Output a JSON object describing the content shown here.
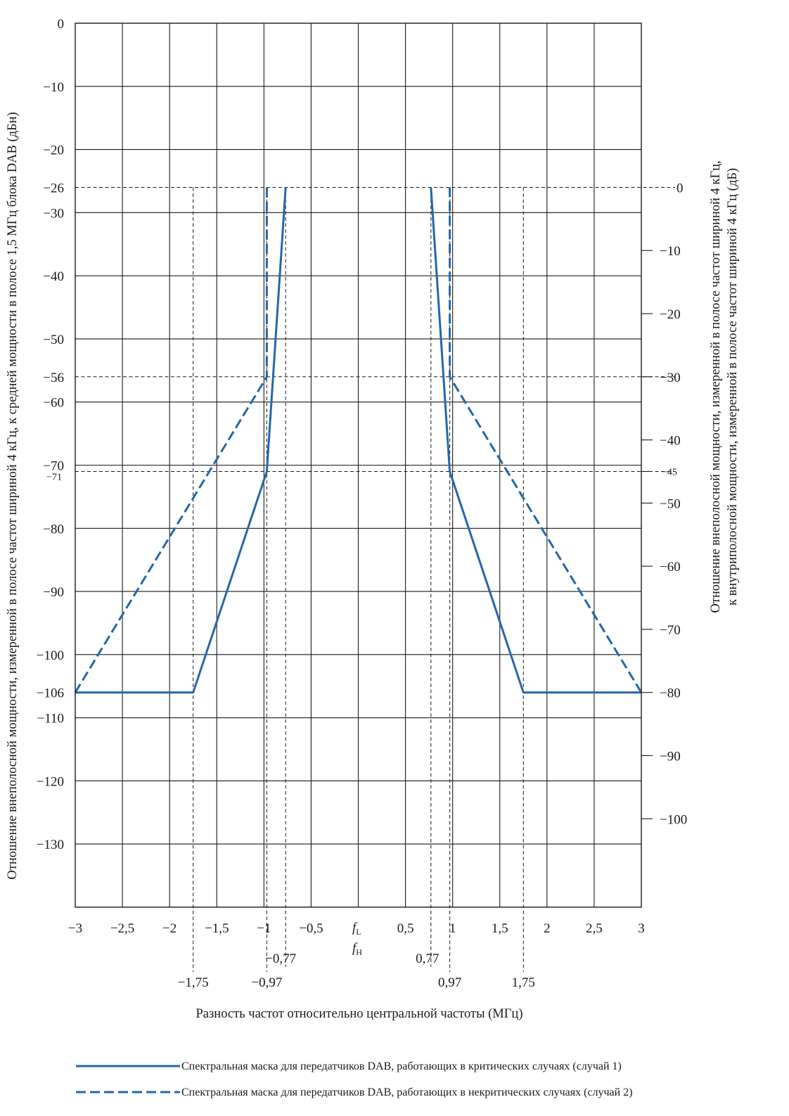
{
  "chart_data": {
    "type": "line",
    "xlabel": "Разность частот относительно центральной частоты (МГц)",
    "ylabel_left": "Отношение внеполосной мощности, измеренной в полосе частот шириной 4 кГц, к средней мощности в полосе 1,5 МГц блока DAB (дБн)",
    "ylabel_right_line1": "Отношение внеполосной мощности, измеренной в полосе частот шириной 4 кГц,",
    "ylabel_right_line2": "к внутриполосной мощности, измеренной в полосе частот шириной 4 кГц (дБ)",
    "xlim": [
      -3,
      3
    ],
    "ylim": [
      -140,
      0
    ],
    "y2lim": [
      -114,
      26
    ],
    "grid": true,
    "x_ticks": [
      {
        "v": -3,
        "label": "−3"
      },
      {
        "v": -2.5,
        "label": "−2,5"
      },
      {
        "v": -2,
        "label": "−2"
      },
      {
        "v": -1.5,
        "label": "−1,5"
      },
      {
        "v": -1,
        "label": "−1"
      },
      {
        "v": -0.5,
        "label": "−0,5"
      },
      {
        "v": 0.5,
        "label": "0,5"
      },
      {
        "v": 1,
        "label": "1"
      },
      {
        "v": 1.5,
        "label": "1,5"
      },
      {
        "v": 2,
        "label": "2"
      },
      {
        "v": 2.5,
        "label": "2,5"
      },
      {
        "v": 3,
        "label": "3"
      }
    ],
    "center_labels": [
      "f",
      "L",
      "f",
      "H"
    ],
    "y_ticks": [
      {
        "v": 0,
        "label": "0"
      },
      {
        "v": -10,
        "label": "−10"
      },
      {
        "v": -20,
        "label": "−20"
      },
      {
        "v": -26,
        "label": "−26"
      },
      {
        "v": -30,
        "label": "−30"
      },
      {
        "v": -40,
        "label": "−40"
      },
      {
        "v": -50,
        "label": "−50"
      },
      {
        "v": -56,
        "label": "−56"
      },
      {
        "v": -60,
        "label": "−60"
      },
      {
        "v": -70,
        "label": "−70"
      },
      {
        "v": -80,
        "label": "−80"
      },
      {
        "v": -90,
        "label": "−90"
      },
      {
        "v": -100,
        "label": "−100"
      },
      {
        "v": -106,
        "label": "−106"
      },
      {
        "v": -110,
        "label": "−110"
      },
      {
        "v": -120,
        "label": "−120"
      },
      {
        "v": -130,
        "label": "−130"
      }
    ],
    "y_ticks_small": [
      {
        "v": -71,
        "label": "−71"
      }
    ],
    "y2_ticks": [
      {
        "v": 0,
        "label": "0",
        "tick": false
      },
      {
        "v": -10,
        "label": "−10",
        "tick": true
      },
      {
        "v": -20,
        "label": "−20",
        "tick": true
      },
      {
        "v": -30,
        "label": "−30",
        "tick": true
      },
      {
        "v": -40,
        "label": "−40",
        "tick": true
      },
      {
        "v": -50,
        "label": "−50",
        "tick": true
      },
      {
        "v": -60,
        "label": "−60",
        "tick": true
      },
      {
        "v": -70,
        "label": "−70",
        "tick": true
      },
      {
        "v": -80,
        "label": "−80",
        "tick": true
      },
      {
        "v": -90,
        "label": "−90",
        "tick": true
      },
      {
        "v": -100,
        "label": "−100",
        "tick": true
      }
    ],
    "y2_ticks_small": [
      {
        "v": -45,
        "label": "−45"
      }
    ],
    "ref_hlines": [
      -26,
      -56,
      -71
    ],
    "ref_vlines": [
      -1.75,
      -0.97,
      -0.77,
      0.77,
      0.97,
      1.75
    ],
    "ref_labels_row1": [
      {
        "v": -0.77,
        "label": "−0,77"
      },
      {
        "v": 0.77,
        "label": "0,77"
      }
    ],
    "ref_labels_row2": [
      {
        "v": -1.75,
        "label": "−1,75"
      },
      {
        "v": -0.97,
        "label": "−0,97"
      },
      {
        "v": 0.97,
        "label": "0,97"
      },
      {
        "v": 1.75,
        "label": "1,75"
      }
    ],
    "series": [
      {
        "name": "Спектральная маска для передатчиков DAB, работающих в критических случаях (случай 1)",
        "style": "solid",
        "color": "#2467a8",
        "segments": [
          [
            [
              -3,
              -106
            ],
            [
              -1.75,
              -106
            ],
            [
              -0.97,
              -71
            ],
            [
              -0.77,
              -26
            ]
          ],
          [
            [
              0.77,
              -26
            ],
            [
              0.97,
              -71
            ],
            [
              1.75,
              -106
            ],
            [
              3,
              -106
            ]
          ]
        ]
      },
      {
        "name": "Спектральная маска для передатчиков DAB, работающих в некритических случаях (случай 2)",
        "style": "dashed",
        "color": "#2467a8",
        "segments": [
          [
            [
              -3,
              -106
            ],
            [
              -0.97,
              -56
            ],
            [
              -0.97,
              -26
            ]
          ],
          [
            [
              0.97,
              -26
            ],
            [
              0.97,
              -56
            ],
            [
              3,
              -106
            ]
          ]
        ]
      }
    ]
  }
}
